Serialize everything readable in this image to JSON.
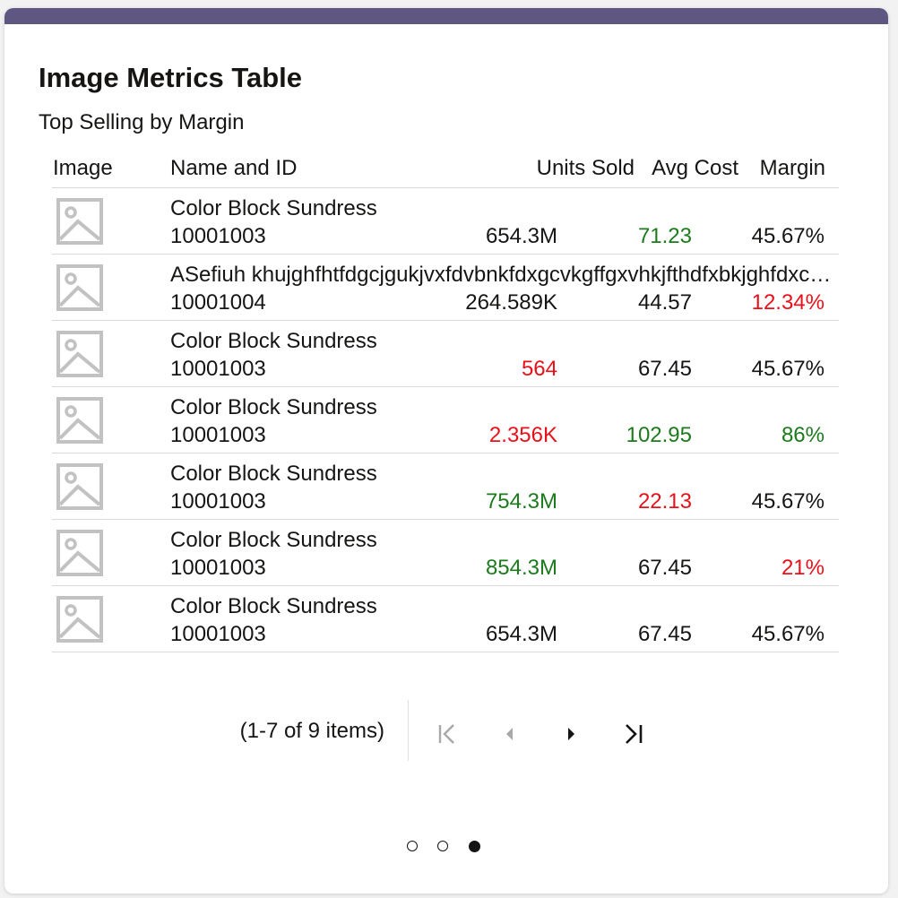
{
  "card": {
    "title": "Image Metrics Table",
    "subtitle": "Top Selling by Margin"
  },
  "table": {
    "headers": {
      "image": "Image",
      "name": "Name and ID",
      "units": "Units Sold",
      "cost": "Avg Cost",
      "margin": "Margin"
    },
    "rows": [
      {
        "name": "Color Block Sundress",
        "id": "10001003",
        "units": "654.3M",
        "units_status": "neutral",
        "cost": "71.23",
        "cost_status": "positive",
        "margin": "45.67%",
        "margin_status": "neutral",
        "thumb_icon": "image-placeholder-icon"
      },
      {
        "name": "ASefiuh khujghfhtfdgcjgukjvxfdvbnkfdxgcvkgffgxvhkjfthdfxbkjghfdxcvbnmhjgfhgdxcv",
        "id": "10001004",
        "units": "264.589K",
        "units_status": "neutral",
        "cost": "44.57",
        "cost_status": "neutral",
        "margin": "12.34%",
        "margin_status": "negative",
        "thumb_icon": "image-placeholder-icon"
      },
      {
        "name": "Color Block Sundress",
        "id": "10001003",
        "units": "564",
        "units_status": "negative",
        "cost": "67.45",
        "cost_status": "neutral",
        "margin": "45.67%",
        "margin_status": "neutral",
        "thumb_icon": "image-placeholder-icon"
      },
      {
        "name": "Color Block Sundress",
        "id": "10001003",
        "units": "2.356K",
        "units_status": "negative",
        "cost": "102.95",
        "cost_status": "positive",
        "margin": "86%",
        "margin_status": "positive",
        "thumb_icon": "image-placeholder-icon"
      },
      {
        "name": "Color Block Sundress",
        "id": "10001003",
        "units": "754.3M",
        "units_status": "positive",
        "cost": "22.13",
        "cost_status": "negative",
        "margin": "45.67%",
        "margin_status": "neutral",
        "thumb_icon": "image-placeholder-icon"
      },
      {
        "name": "Color Block Sundress",
        "id": "10001003",
        "units": "854.3M",
        "units_status": "positive",
        "cost": "67.45",
        "cost_status": "neutral",
        "margin": "21%",
        "margin_status": "negative",
        "thumb_icon": "image-placeholder-icon"
      },
      {
        "name": "Color Block Sundress",
        "id": "10001003",
        "units": "654.3M",
        "units_status": "neutral",
        "cost": "67.45",
        "cost_status": "neutral",
        "margin": "45.67%",
        "margin_status": "neutral",
        "thumb_icon": "image-placeholder-icon"
      }
    ]
  },
  "pagination": {
    "info": "(1-7 of 9 items)",
    "first_icon": "first-page-icon",
    "prev_icon": "previous-page-icon",
    "next_icon": "next-page-icon",
    "last_icon": "last-page-icon",
    "first_enabled": false,
    "prev_enabled": false,
    "next_enabled": true,
    "last_enabled": true
  },
  "carousel": {
    "dot_count": 3,
    "active_index": 2
  },
  "colors": {
    "band": "#5f5681",
    "positive": "#1d7a1d",
    "negative": "#e8101a",
    "text": "#161513",
    "disabled": "#a8a8a8",
    "placeholder": "#c2c2c2"
  }
}
